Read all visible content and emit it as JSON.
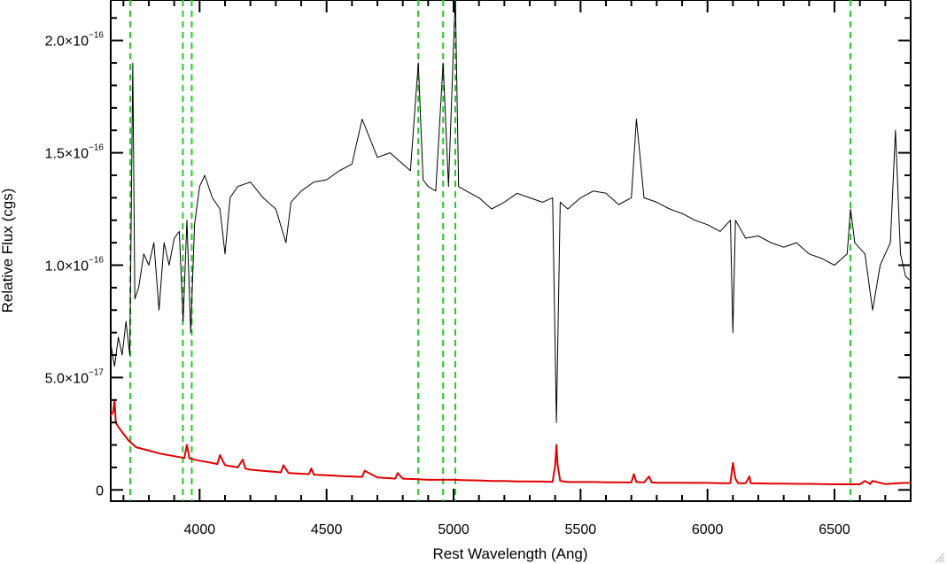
{
  "chart_data": {
    "type": "line",
    "xlabel": "Rest Wavelength (Ang)",
    "ylabel": "Relative Flux (cgs)",
    "xlim": [
      3650,
      6800
    ],
    "ylim": [
      -5e-18,
      2.18e-16
    ],
    "x_ticks": [
      4000,
      4500,
      5000,
      5500,
      6000,
      6500
    ],
    "x_tick_labels": [
      "4000",
      "4500",
      "5000",
      "5500",
      "6000",
      "6500"
    ],
    "y_ticks": [
      {
        "value": 0,
        "mant": "0",
        "exp": ""
      },
      {
        "value": 5e-17,
        "mant": "5.0×10",
        "exp": "−17"
      },
      {
        "value": 1e-16,
        "mant": "1.0×10",
        "exp": "−16"
      },
      {
        "value": 1.5e-16,
        "mant": "1.5×10",
        "exp": "−16"
      },
      {
        "value": 2e-16,
        "mant": "2.0×10",
        "exp": "−16"
      }
    ],
    "series": [
      {
        "color": "#000000",
        "role": "spectrum",
        "x": [
          3650,
          3665,
          3680,
          3695,
          3710,
          3725,
          3737,
          3745,
          3760,
          3780,
          3800,
          3820,
          3840,
          3860,
          3880,
          3900,
          3920,
          3935,
          3950,
          3965,
          3980,
          4000,
          4020,
          4050,
          4080,
          4100,
          4120,
          4150,
          4200,
          4250,
          4300,
          4340,
          4360,
          4400,
          4450,
          4500,
          4550,
          4600,
          4640,
          4700,
          4750,
          4800,
          4830,
          4861,
          4880,
          4900,
          4930,
          4959,
          4980,
          5007,
          5020,
          5050,
          5100,
          5150,
          5200,
          5250,
          5300,
          5350,
          5390,
          5405,
          5420,
          5450,
          5500,
          5550,
          5600,
          5650,
          5700,
          5720,
          5750,
          5800,
          5850,
          5900,
          5950,
          6000,
          6050,
          6090,
          6100,
          6110,
          6150,
          6200,
          6250,
          6300,
          6350,
          6400,
          6450,
          6500,
          6550,
          6563,
          6580,
          6620,
          6650,
          6680,
          6700,
          6720,
          6740,
          6760,
          6780,
          6800
        ],
        "y": [
          6.5e-17,
          5.5e-17,
          6.8e-17,
          6e-17,
          7.5e-17,
          6e-17,
          1.9e-16,
          8.5e-17,
          9e-17,
          1.05e-16,
          1e-16,
          1.1e-16,
          8e-17,
          1.1e-16,
          1e-16,
          1.12e-16,
          1.15e-16,
          7.5e-17,
          1.2e-16,
          7e-17,
          1.18e-16,
          1.35e-16,
          1.4e-16,
          1.3e-16,
          1.25e-16,
          1.05e-16,
          1.3e-16,
          1.35e-16,
          1.37e-16,
          1.3e-16,
          1.25e-16,
          1.1e-16,
          1.28e-16,
          1.33e-16,
          1.37e-16,
          1.38e-16,
          1.42e-16,
          1.45e-16,
          1.65e-16,
          1.48e-16,
          1.5e-16,
          1.45e-16,
          1.42e-16,
          1.9e-16,
          1.38e-16,
          1.35e-16,
          1.33e-16,
          1.9e-16,
          1.35e-16,
          2.2e-16,
          1.35e-16,
          1.33e-16,
          1.3e-16,
          1.25e-16,
          1.28e-16,
          1.32e-16,
          1.3e-16,
          1.28e-16,
          1.3e-16,
          3e-17,
          1.28e-16,
          1.25e-16,
          1.3e-16,
          1.33e-16,
          1.32e-16,
          1.27e-16,
          1.3e-16,
          1.65e-16,
          1.3e-16,
          1.28e-16,
          1.25e-16,
          1.23e-16,
          1.2e-16,
          1.18e-16,
          1.15e-16,
          1.2e-16,
          7e-17,
          1.2e-16,
          1.12e-16,
          1.13e-16,
          1.1e-16,
          1.08e-16,
          1.1e-16,
          1.05e-16,
          1.03e-16,
          1e-16,
          1.05e-16,
          1.25e-16,
          1.1e-16,
          1.05e-16,
          8e-17,
          1e-16,
          1.05e-16,
          1.1e-16,
          1.6e-16,
          1.05e-16,
          9.5e-17,
          9.3e-17
        ]
      },
      {
        "color": "#e00000",
        "role": "error",
        "x": [
          3650,
          3660,
          3665,
          3670,
          3680,
          3700,
          3720,
          3750,
          3800,
          3850,
          3900,
          3940,
          3950,
          3960,
          4000,
          4050,
          4070,
          4080,
          4100,
          4150,
          4170,
          4180,
          4200,
          4250,
          4300,
          4320,
          4330,
          4350,
          4400,
          4430,
          4440,
          4450,
          4500,
          4550,
          4600,
          4640,
          4650,
          4700,
          4750,
          4770,
          4780,
          4800,
          4850,
          4900,
          4950,
          5000,
          5050,
          5100,
          5150,
          5200,
          5250,
          5300,
          5350,
          5390,
          5400,
          5405,
          5410,
          5420,
          5450,
          5500,
          5550,
          5600,
          5650,
          5700,
          5710,
          5720,
          5750,
          5770,
          5780,
          5800,
          5850,
          5900,
          5950,
          6000,
          6050,
          6090,
          6100,
          6110,
          6120,
          6150,
          6165,
          6170,
          6180,
          6200,
          6250,
          6300,
          6350,
          6400,
          6450,
          6500,
          6550,
          6600,
          6620,
          6640,
          6650,
          6700,
          6750,
          6800
        ],
        "y": [
          3.3e-17,
          3.5e-17,
          4e-17,
          3e-17,
          2.8e-17,
          2.5e-17,
          2.2e-17,
          1.9e-17,
          1.75e-17,
          1.6e-17,
          1.5e-17,
          1.42e-17,
          2e-17,
          1.4e-17,
          1.3e-17,
          1.2e-17,
          1.15e-17,
          1.55e-17,
          1.1e-17,
          1e-17,
          1.35e-17,
          9.5e-18,
          9e-18,
          8.5e-18,
          8e-18,
          7.8e-18,
          1.1e-17,
          7.5e-18,
          7.2e-18,
          7e-18,
          9.5e-18,
          6.8e-18,
          6.5e-18,
          6.2e-18,
          6e-18,
          5.8e-18,
          8.5e-18,
          5.5e-18,
          5.2e-18,
          5e-18,
          7.5e-18,
          5e-18,
          4.8e-18,
          4.5e-18,
          4.5e-18,
          4.5e-18,
          4.3e-18,
          4.2e-18,
          4e-18,
          4e-18,
          3.8e-18,
          3.8e-18,
          3.7e-18,
          3.6e-18,
          1.1e-17,
          2e-17,
          1.1e-17,
          4e-18,
          3.5e-18,
          3.5e-18,
          3.5e-18,
          3.4e-18,
          3.4e-18,
          3.3e-18,
          7e-18,
          3.5e-18,
          3.3e-18,
          6e-18,
          3.3e-18,
          3.2e-18,
          3.2e-18,
          3.2e-18,
          3.1e-18,
          3.1e-18,
          3e-18,
          3e-18,
          1.2e-17,
          5e-18,
          3e-18,
          3e-18,
          6e-18,
          3e-18,
          2.9e-18,
          2.9e-18,
          2.8e-18,
          2.8e-18,
          2.7e-18,
          2.7e-18,
          2.6e-18,
          2.5e-18,
          2.5e-18,
          2.5e-18,
          4e-18,
          2.6e-18,
          4e-18,
          2.6e-18,
          3e-18,
          3.2e-18
        ]
      }
    ],
    "vlines": {
      "color": "#22cc22",
      "style": "dashed",
      "x": [
        3727,
        3934,
        3969,
        4861,
        4959,
        5007,
        6563
      ]
    }
  }
}
